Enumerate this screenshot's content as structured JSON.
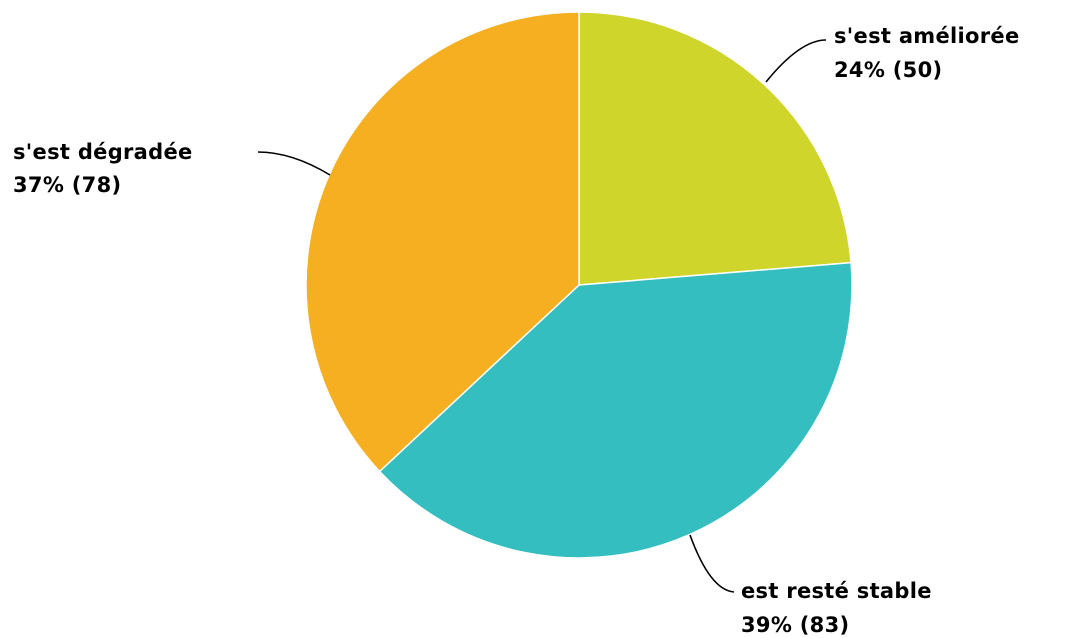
{
  "chart_data": {
    "type": "pie",
    "title": "",
    "slices": [
      {
        "name": "s'est améliorée",
        "percent_label": "24% (50)",
        "value": 50,
        "color": "#CFD52A"
      },
      {
        "name": "est resté stable",
        "percent_label": "39% (83)",
        "value": 83,
        "color": "#35BEC0"
      },
      {
        "name": "s'est dégradée",
        "percent_label": "37% (78)",
        "value": 78,
        "color": "#F5AF20"
      }
    ]
  }
}
